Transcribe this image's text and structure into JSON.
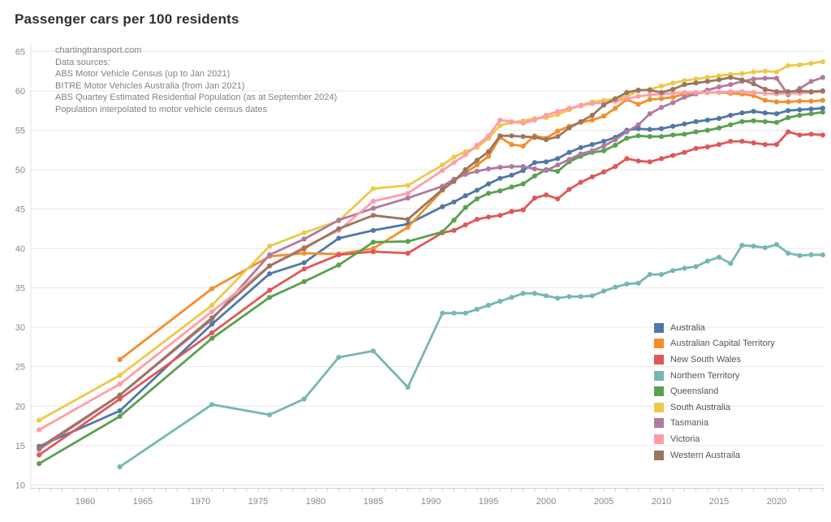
{
  "title": "Passenger cars per 100 residents",
  "annotation": {
    "lines": [
      "chartingtransport.com",
      "Data sources:",
      "ABS Motor Vehicle Census (up to Jan 2021)",
      "BITRE Motor Vehicles Australia (from Jan 2021)",
      "ABS Quartey Estimated Residential Population (as at September 2024)",
      "Population interpolated to motor vehicle census dates"
    ]
  },
  "chart_data": {
    "type": "line",
    "title": "Passenger cars per 100 residents",
    "xlabel": "",
    "ylabel": "",
    "grid": "horizontal",
    "legend_position": "inside-bottom-right",
    "x_ticks": [
      1960,
      1965,
      1970,
      1975,
      1980,
      1985,
      1990,
      1995,
      2000,
      2005,
      2010,
      2015,
      2020
    ],
    "y_ticks": [
      10,
      15,
      20,
      25,
      30,
      35,
      40,
      45,
      50,
      55,
      60,
      65
    ],
    "ylim": [
      10,
      65
    ],
    "xlim": [
      1955,
      2024
    ],
    "years": [
      1956,
      1963,
      1971,
      1976,
      1979,
      1982,
      1985,
      1988,
      1991,
      1992,
      1993,
      1994,
      1995,
      1996,
      1997,
      1998,
      1999,
      2000,
      2001,
      2002,
      2003,
      2004,
      2005,
      2006,
      2007,
      2008,
      2009,
      2010,
      2011,
      2012,
      2013,
      2014,
      2015,
      2016,
      2017,
      2018,
      2019,
      2020,
      2021,
      2022,
      2023,
      2024
    ],
    "series": [
      {
        "name": "Australia",
        "color": "#4e79a7",
        "values": [
          14.9,
          19.4,
          30.4,
          36.8,
          38.2,
          41.3,
          42.3,
          43.1,
          45.3,
          45.9,
          46.7,
          47.4,
          48.2,
          48.9,
          49.3,
          49.9,
          50.9,
          51.0,
          51.4,
          52.2,
          52.8,
          53.2,
          53.6,
          54.1,
          55.0,
          55.2,
          55.1,
          55.2,
          55.5,
          55.8,
          56.1,
          56.3,
          56.5,
          56.9,
          57.2,
          57.4,
          57.2,
          57.1,
          57.5,
          57.6,
          57.7,
          57.8
        ]
      },
      {
        "name": "Australian Capital Territory",
        "color": "#f28e2b",
        "values": [
          null,
          25.9,
          34.9,
          39.0,
          39.4,
          39.3,
          40.0,
          42.7,
          47.4,
          48.6,
          49.6,
          50.6,
          51.7,
          54.1,
          53.2,
          53.0,
          54.3,
          54.0,
          54.9,
          55.5,
          56.0,
          56.3,
          56.8,
          57.8,
          58.9,
          58.3,
          58.9,
          59.0,
          59.2,
          59.6,
          59.7,
          59.8,
          59.8,
          59.7,
          59.6,
          59.4,
          58.8,
          58.6,
          58.6,
          58.7,
          58.7,
          58.8
        ]
      },
      {
        "name": "New South Wales",
        "color": "#e15759",
        "values": [
          13.8,
          20.9,
          29.3,
          34.7,
          37.4,
          39.2,
          39.6,
          39.4,
          42.0,
          42.3,
          43.0,
          43.7,
          44.0,
          44.2,
          44.7,
          44.9,
          46.4,
          46.8,
          46.3,
          47.5,
          48.4,
          49.1,
          49.7,
          50.4,
          51.4,
          51.1,
          51.0,
          51.4,
          51.8,
          52.2,
          52.7,
          52.9,
          53.2,
          53.6,
          53.6,
          53.4,
          53.2,
          53.2,
          54.8,
          54.4,
          54.5,
          54.4
        ]
      },
      {
        "name": "Northern Territory",
        "color": "#76b7b2",
        "values": [
          null,
          12.3,
          20.2,
          18.9,
          20.9,
          26.2,
          27.0,
          22.4,
          31.8,
          31.8,
          31.8,
          32.3,
          32.8,
          33.3,
          33.8,
          34.3,
          34.3,
          34.0,
          33.7,
          33.9,
          33.9,
          34.0,
          34.6,
          35.1,
          35.5,
          35.6,
          36.7,
          36.7,
          37.2,
          37.5,
          37.7,
          38.4,
          38.9,
          38.1,
          40.4,
          40.3,
          40.1,
          40.5,
          39.4,
          39.1,
          39.2,
          39.2
        ]
      },
      {
        "name": "Queensland",
        "color": "#59a14f",
        "values": [
          12.7,
          18.7,
          28.6,
          33.8,
          35.8,
          37.9,
          40.8,
          40.9,
          42.1,
          43.6,
          45.2,
          46.3,
          47.0,
          47.3,
          47.8,
          48.2,
          49.2,
          50.0,
          49.8,
          51.0,
          51.7,
          52.2,
          52.4,
          53.1,
          54.0,
          54.3,
          54.2,
          54.2,
          54.4,
          54.5,
          54.8,
          55.0,
          55.3,
          55.7,
          56.1,
          56.2,
          56.1,
          56.0,
          56.6,
          56.9,
          57.1,
          57.3
        ]
      },
      {
        "name": "South Australia",
        "color": "#edc948",
        "values": [
          18.2,
          23.9,
          32.8,
          40.3,
          42.0,
          43.5,
          47.6,
          48.0,
          50.6,
          51.6,
          52.3,
          52.8,
          54.0,
          55.6,
          56.0,
          56.2,
          56.5,
          56.6,
          57.0,
          57.6,
          58.2,
          58.6,
          58.8,
          59.0,
          59.3,
          60.0,
          60.2,
          60.6,
          61.0,
          61.3,
          61.5,
          61.7,
          61.9,
          62.1,
          62.2,
          62.4,
          62.5,
          62.4,
          63.2,
          63.3,
          63.5,
          63.7
        ]
      },
      {
        "name": "Tasmania",
        "color": "#b07aa1",
        "values": [
          14.5,
          21.4,
          31.0,
          39.2,
          41.2,
          43.6,
          45.1,
          46.4,
          47.9,
          48.8,
          49.4,
          49.8,
          50.1,
          50.3,
          50.4,
          50.4,
          50.1,
          49.9,
          50.6,
          51.3,
          52.0,
          52.4,
          53.0,
          53.8,
          54.8,
          55.7,
          57.1,
          57.9,
          58.5,
          59.2,
          59.6,
          60.1,
          60.5,
          60.8,
          61.2,
          61.5,
          61.6,
          61.6,
          59.5,
          60.3,
          61.2,
          61.7
        ]
      },
      {
        "name": "Victoria",
        "color": "#ff9da7",
        "values": [
          17.0,
          22.8,
          32.0,
          37.8,
          40.2,
          42.3,
          46.0,
          47.0,
          49.9,
          50.9,
          51.9,
          53.1,
          54.3,
          56.3,
          56.1,
          55.9,
          56.3,
          56.9,
          57.4,
          57.8,
          58.1,
          58.4,
          58.5,
          58.7,
          59.0,
          59.3,
          59.5,
          59.6,
          59.7,
          59.8,
          59.8,
          59.8,
          59.8,
          59.9,
          59.9,
          59.8,
          59.7,
          59.6,
          59.7,
          59.7,
          59.8,
          59.9
        ]
      },
      {
        "name": "Western Austraila",
        "color": "#9c755f",
        "values": [
          14.7,
          21.4,
          31.2,
          37.8,
          40.0,
          42.5,
          44.2,
          43.7,
          47.5,
          48.5,
          50.0,
          51.2,
          52.3,
          54.3,
          54.3,
          54.2,
          54.1,
          53.8,
          54.2,
          55.3,
          56.1,
          56.9,
          58.2,
          59.0,
          59.8,
          60.1,
          60.1,
          59.8,
          60.2,
          60.8,
          61.0,
          61.2,
          61.4,
          61.7,
          61.4,
          60.9,
          60.2,
          59.9,
          59.9,
          60.0,
          59.9,
          60.0
        ]
      }
    ]
  }
}
